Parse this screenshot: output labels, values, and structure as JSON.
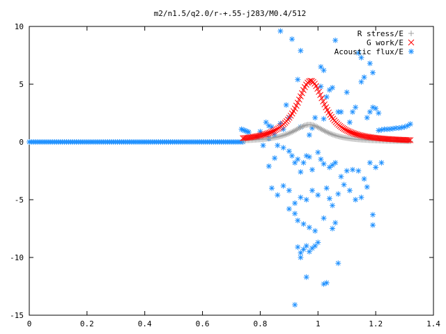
{
  "chart_data": {
    "type": "scatter",
    "title": "m2/n1.5/q2.0/r-+.55-j283/M0.4/512",
    "xlabel": "",
    "ylabel": "",
    "xlim": [
      0,
      1.4
    ],
    "ylim": [
      -15,
      10
    ],
    "x_ticks": [
      "0",
      "0.2",
      "0.4",
      "0.6",
      "0.8",
      "1",
      "1.2",
      "1.4"
    ],
    "y_ticks": [
      "10",
      "5",
      "0",
      "-5",
      "-10",
      "-15"
    ],
    "grid": false,
    "legend_position": "top-right",
    "series": [
      {
        "name": "R stress/E",
        "marker": "+",
        "color": "#a0a0a0",
        "model": {
          "type": "lorentzian",
          "x_min": 0.74,
          "x_max": 1.32,
          "n": 120,
          "center": 0.97,
          "peak": 1.5,
          "width": 0.07,
          "baseline": 0.0
        }
      },
      {
        "name": "G work/E",
        "marker": "x",
        "color": "#ff0000",
        "model": {
          "type": "lorentzian",
          "x_min": 0.74,
          "x_max": 1.32,
          "n": 120,
          "center": 0.975,
          "peak": 5.3,
          "width": 0.06,
          "baseline": 0.0
        }
      },
      {
        "name": "Acoustic flux/E",
        "marker": "*",
        "color": "#1e90ff",
        "flat": {
          "x_min": 0.0,
          "x_max": 0.74,
          "n": 110,
          "y": 0.0
        },
        "edge_left": [
          [
            0.735,
            1.1
          ],
          [
            0.74,
            1.05
          ],
          [
            0.745,
            1.0
          ],
          [
            0.75,
            0.95
          ],
          [
            0.755,
            0.9
          ],
          [
            0.76,
            0.85
          ]
        ],
        "edge_right": [
          [
            1.21,
            1.0
          ],
          [
            1.22,
            1.05
          ],
          [
            1.23,
            1.1
          ],
          [
            1.24,
            1.1
          ],
          [
            1.25,
            1.12
          ],
          [
            1.26,
            1.15
          ],
          [
            1.27,
            1.2
          ],
          [
            1.28,
            1.2
          ],
          [
            1.29,
            1.25
          ],
          [
            1.3,
            1.3
          ],
          [
            1.31,
            1.4
          ],
          [
            1.32,
            1.55
          ]
        ],
        "points": [
          [
            0.87,
            9.6
          ],
          [
            0.91,
            8.9
          ],
          [
            0.94,
            7.9
          ],
          [
            1.01,
            6.5
          ],
          [
            1.02,
            6.2
          ],
          [
            1.06,
            8.8
          ],
          [
            1.18,
            6.8
          ],
          [
            1.19,
            6.0
          ],
          [
            1.14,
            7.7
          ],
          [
            1.15,
            7.3
          ],
          [
            1.16,
            5.6
          ],
          [
            1.15,
            5.2
          ],
          [
            1.01,
            4.8
          ],
          [
            1.04,
            4.5
          ],
          [
            1.05,
            4.7
          ],
          [
            1.1,
            4.3
          ],
          [
            0.93,
            5.4
          ],
          [
            0.89,
            3.2
          ],
          [
            0.9,
            2.1
          ],
          [
            0.87,
            1.6
          ],
          [
            0.88,
            1.1
          ],
          [
            0.94,
            1.3
          ],
          [
            0.97,
            0.6
          ],
          [
            0.98,
            1.2
          ],
          [
            0.99,
            2.1
          ],
          [
            1.02,
            2.0
          ],
          [
            1.03,
            3.9
          ],
          [
            1.07,
            2.6
          ],
          [
            1.08,
            2.6
          ],
          [
            1.11,
            1.7
          ],
          [
            1.12,
            2.6
          ],
          [
            1.13,
            3.0
          ],
          [
            1.17,
            2.1
          ],
          [
            1.18,
            2.6
          ],
          [
            1.19,
            3.0
          ],
          [
            1.2,
            2.9
          ],
          [
            1.21,
            2.5
          ],
          [
            0.82,
            1.7
          ],
          [
            0.83,
            1.4
          ],
          [
            0.84,
            1.3
          ],
          [
            0.8,
            0.9
          ],
          [
            0.79,
            0.4
          ],
          [
            0.81,
            -0.3
          ],
          [
            0.83,
            0.3
          ],
          [
            0.85,
            0.6
          ],
          [
            0.86,
            -0.3
          ],
          [
            0.88,
            -0.5
          ],
          [
            0.9,
            -0.8
          ],
          [
            0.91,
            -1.2
          ],
          [
            0.92,
            -1.8
          ],
          [
            0.93,
            -1.5
          ],
          [
            0.94,
            -2.6
          ],
          [
            0.95,
            -1.8
          ],
          [
            0.96,
            -1.2
          ],
          [
            0.97,
            -1.3
          ],
          [
            0.98,
            -2.4
          ],
          [
            1.0,
            -0.9
          ],
          [
            1.01,
            -1.5
          ],
          [
            1.02,
            -1.9
          ],
          [
            1.04,
            -2.2
          ],
          [
            1.05,
            -2.0
          ],
          [
            1.06,
            -1.8
          ],
          [
            1.08,
            -3.0
          ],
          [
            1.1,
            -2.5
          ],
          [
            1.12,
            -2.4
          ],
          [
            1.14,
            -2.5
          ],
          [
            1.16,
            -3.2
          ],
          [
            1.18,
            -1.8
          ],
          [
            1.2,
            -2.2
          ],
          [
            1.22,
            -1.8
          ],
          [
            0.85,
            -1.4
          ],
          [
            0.83,
            -2.1
          ],
          [
            0.84,
            -4.0
          ],
          [
            0.86,
            -4.6
          ],
          [
            0.88,
            -3.8
          ],
          [
            0.9,
            -4.2
          ],
          [
            0.92,
            -5.3
          ],
          [
            0.94,
            -4.8
          ],
          [
            0.96,
            -5.0
          ],
          [
            0.98,
            -4.2
          ],
          [
            1.0,
            -4.6
          ],
          [
            1.03,
            -4.0
          ],
          [
            1.04,
            -4.9
          ],
          [
            1.05,
            -5.5
          ],
          [
            1.07,
            -4.5
          ],
          [
            1.09,
            -3.7
          ],
          [
            1.11,
            -4.2
          ],
          [
            1.13,
            -5.0
          ],
          [
            1.15,
            -4.8
          ],
          [
            1.17,
            -3.9
          ],
          [
            0.9,
            -5.8
          ],
          [
            0.92,
            -6.2
          ],
          [
            0.93,
            -6.8
          ],
          [
            0.95,
            -7.1
          ],
          [
            0.97,
            -7.4
          ],
          [
            0.99,
            -7.7
          ],
          [
            1.02,
            -6.6
          ],
          [
            1.05,
            -7.5
          ],
          [
            1.06,
            -7.0
          ],
          [
            1.19,
            -6.3
          ],
          [
            1.19,
            -7.2
          ],
          [
            0.93,
            -9.1
          ],
          [
            0.94,
            -9.6
          ],
          [
            0.95,
            -9.3
          ],
          [
            0.96,
            -9.0
          ],
          [
            0.97,
            -9.5
          ],
          [
            0.98,
            -9.2
          ],
          [
            0.99,
            -9.0
          ],
          [
            1.0,
            -8.7
          ],
          [
            0.94,
            -10.0
          ],
          [
            0.96,
            -11.7
          ],
          [
            1.07,
            -10.5
          ],
          [
            1.02,
            -12.3
          ],
          [
            1.03,
            -12.2
          ],
          [
            0.92,
            -14.1
          ]
        ]
      }
    ]
  }
}
